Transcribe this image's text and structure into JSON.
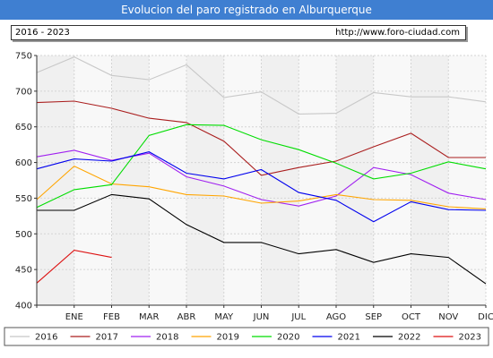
{
  "header": {
    "title": "Evolucion del paro registrado en Alburquerque",
    "period": "2016 - 2023",
    "url": "http://www.foro-ciudad.com"
  },
  "chart_data": {
    "type": "line",
    "title": "Evolucion del paro registrado en Alburquerque",
    "categories": [
      "",
      "ENE",
      "FEB",
      "MAR",
      "ABR",
      "MAY",
      "JUN",
      "JUL",
      "AGO",
      "SEP",
      "OCT",
      "NOV",
      "DIC"
    ],
    "ylim": [
      400,
      750
    ],
    "yticks": [
      400,
      450,
      500,
      550,
      600,
      650,
      700,
      750
    ],
    "grid": true,
    "legend_position": "bottom",
    "series": [
      {
        "name": "2016",
        "color": "#c8c8c8",
        "values": [
          726,
          748,
          722,
          716,
          737,
          691,
          699,
          668,
          669,
          698,
          692,
          692,
          685
        ]
      },
      {
        "name": "2017",
        "color": "#aa1e1e",
        "values": [
          684,
          686,
          676,
          662,
          656,
          630,
          582,
          593,
          602,
          622,
          641,
          607,
          607
        ]
      },
      {
        "name": "2018",
        "color": "#a020f0",
        "values": [
          608,
          617,
          603,
          613,
          580,
          567,
          548,
          539,
          553,
          593,
          583,
          557,
          548
        ]
      },
      {
        "name": "2019",
        "color": "#ffa500",
        "values": [
          548,
          595,
          570,
          566,
          555,
          553,
          543,
          546,
          555,
          548,
          547,
          538,
          535
        ]
      },
      {
        "name": "2020",
        "color": "#00dd00",
        "values": [
          537,
          562,
          569,
          638,
          653,
          652,
          632,
          618,
          599,
          577,
          585,
          601,
          591
        ]
      },
      {
        "name": "2021",
        "color": "#0000ee",
        "values": [
          591,
          605,
          602,
          615,
          585,
          577,
          590,
          558,
          547,
          517,
          545,
          534,
          533
        ]
      },
      {
        "name": "2022",
        "color": "#000000",
        "values": [
          533,
          533,
          555,
          549,
          513,
          488,
          488,
          472,
          478,
          460,
          472,
          467,
          430
        ]
      },
      {
        "name": "2023",
        "color": "#dd1111",
        "values": [
          431,
          477,
          467,
          null,
          null,
          null,
          null,
          null,
          null,
          null,
          null,
          null,
          null
        ]
      }
    ]
  }
}
